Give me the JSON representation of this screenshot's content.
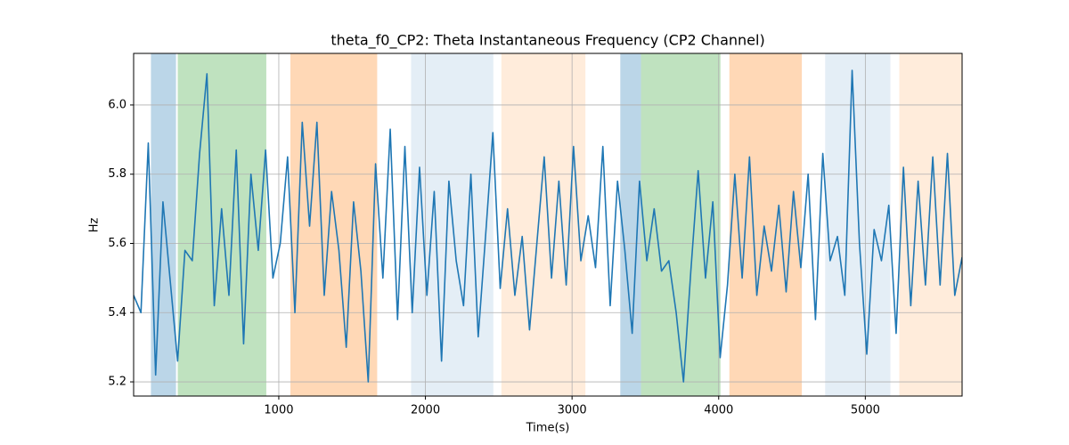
{
  "chart_data": {
    "type": "line",
    "title": "theta_f0_CP2: Theta Instantaneous Frequency (CP2 Channel)",
    "x_label": "Time(s)",
    "y_label": "Hz",
    "xlim": [
      10,
      5660
    ],
    "ylim": [
      5.159,
      6.149
    ],
    "xticks": [
      1000,
      2000,
      3000,
      4000,
      5000
    ],
    "yticks": [
      5.2,
      5.4,
      5.6,
      5.8,
      {
        "value": 6,
        "label": "6.0"
      }
    ],
    "grid": true,
    "spans": [
      {
        "start": 128,
        "end": 299,
        "color": "#1f77b4",
        "alpha": 0.3
      },
      {
        "start": 311,
        "end": 915,
        "color": "#2ca02c",
        "alpha": 0.3
      },
      {
        "start": 1079,
        "end": 1671,
        "color": "#ff7f0e",
        "alpha": 0.3
      },
      {
        "start": 1902,
        "end": 2463,
        "color": "#1f77b4",
        "alpha": 0.12
      },
      {
        "start": 2518,
        "end": 3091,
        "color": "#ff7f0e",
        "alpha": 0.15
      },
      {
        "start": 3329,
        "end": 3470,
        "color": "#1f77b4",
        "alpha": 0.3
      },
      {
        "start": 3470,
        "end": 4012,
        "color": "#2ca02c",
        "alpha": 0.3
      },
      {
        "start": 4073,
        "end": 4567,
        "color": "#ff7f0e",
        "alpha": 0.3
      },
      {
        "start": 4726,
        "end": 5171,
        "color": "#1f77b4",
        "alpha": 0.12
      },
      {
        "start": 5232,
        "end": 5677,
        "color": "#ff7f0e",
        "alpha": 0.15
      }
    ],
    "x": [
      10,
      60,
      110,
      160,
      210,
      260,
      310,
      360,
      410,
      460,
      510,
      560,
      610,
      660,
      710,
      760,
      810,
      860,
      910,
      960,
      1010,
      1060,
      1110,
      1160,
      1210,
      1260,
      1310,
      1360,
      1410,
      1460,
      1510,
      1560,
      1610,
      1660,
      1710,
      1760,
      1810,
      1860,
      1910,
      1960,
      2010,
      2060,
      2110,
      2160,
      2210,
      2260,
      2310,
      2360,
      2410,
      2460,
      2510,
      2560,
      2610,
      2660,
      2710,
      2760,
      2810,
      2860,
      2910,
      2960,
      3010,
      3060,
      3110,
      3160,
      3210,
      3260,
      3310,
      3360,
      3410,
      3460,
      3510,
      3560,
      3610,
      3660,
      3710,
      3760,
      3810,
      3860,
      3910,
      3960,
      4010,
      4060,
      4110,
      4160,
      4210,
      4260,
      4310,
      4360,
      4410,
      4460,
      4510,
      4560,
      4610,
      4660,
      4710,
      4760,
      4810,
      4860,
      4910,
      4960,
      5010,
      5060,
      5110,
      5160,
      5210,
      5260,
      5310,
      5360,
      5410,
      5460,
      5510,
      5560,
      5610,
      5660
    ],
    "series": [
      {
        "color": "#1f77b4",
        "values": [
          5.45,
          5.4,
          5.89,
          5.22,
          5.72,
          5.49,
          5.26,
          5.58,
          5.55,
          5.86,
          6.09,
          5.42,
          5.7,
          5.45,
          5.87,
          5.31,
          5.8,
          5.58,
          5.87,
          5.5,
          5.6,
          5.85,
          5.4,
          5.95,
          5.65,
          5.95,
          5.45,
          5.75,
          5.58,
          5.3,
          5.72,
          5.52,
          5.2,
          5.83,
          5.5,
          5.93,
          5.38,
          5.88,
          5.4,
          5.82,
          5.45,
          5.75,
          5.26,
          5.78,
          5.55,
          5.42,
          5.8,
          5.33,
          5.62,
          5.92,
          5.47,
          5.7,
          5.45,
          5.62,
          5.35,
          5.6,
          5.85,
          5.5,
          5.78,
          5.48,
          5.88,
          5.55,
          5.68,
          5.53,
          5.88,
          5.42,
          5.78,
          5.58,
          5.34,
          5.78,
          5.55,
          5.7,
          5.52,
          5.55,
          5.4,
          5.2,
          5.52,
          5.81,
          5.5,
          5.72,
          5.27,
          5.48,
          5.8,
          5.5,
          5.85,
          5.45,
          5.65,
          5.52,
          5.71,
          5.46,
          5.75,
          5.53,
          5.8,
          5.38,
          5.86,
          5.55,
          5.62,
          5.45,
          6.1,
          5.6,
          5.28,
          5.64,
          5.55,
          5.71,
          5.34,
          5.82,
          5.42,
          5.78,
          5.48,
          5.85,
          5.48,
          5.86,
          5.45,
          5.56
        ]
      }
    ]
  }
}
